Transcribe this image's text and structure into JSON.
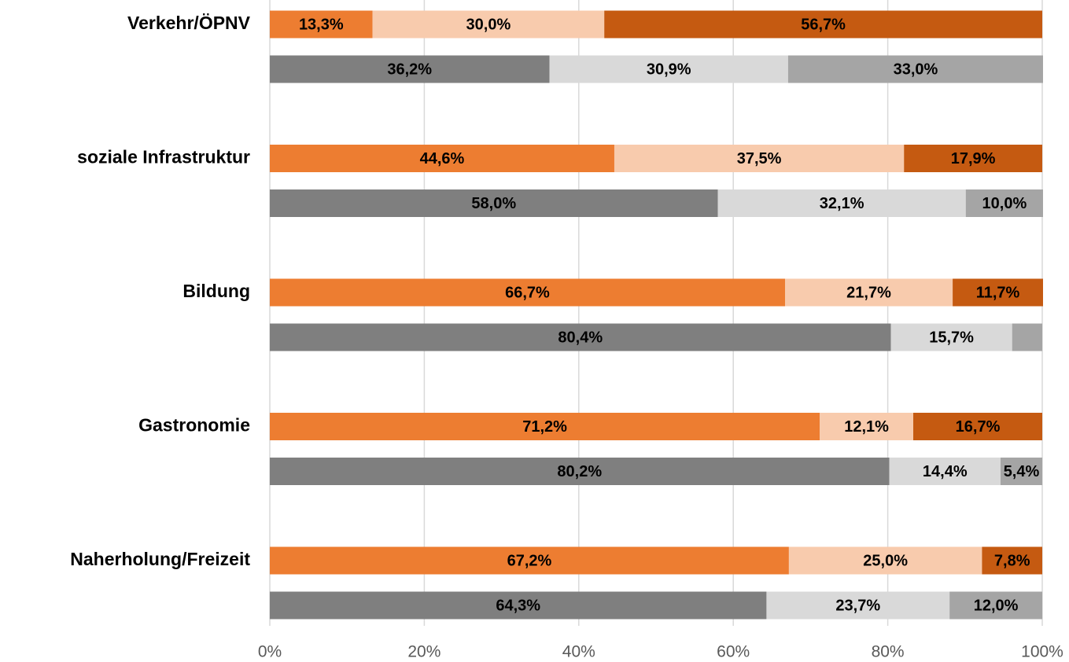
{
  "chart_data": {
    "type": "bar",
    "orientation": "horizontal",
    "stacked": true,
    "categories": [
      "Verkehr/ÖPNV",
      null,
      "soziale Infrastruktur",
      null,
      "Bildung",
      null,
      "Gastronomie",
      null,
      "Naherholung/Freizeit",
      null
    ],
    "series": [
      {
        "color": "#ed7d31",
        "values": [
          13.3,
          null,
          44.6,
          null,
          66.7,
          null,
          71.2,
          null,
          67.2,
          null
        ],
        "value_labels": [
          "13,3%",
          null,
          "44,6%",
          null,
          "66,7%",
          null,
          "71,2%",
          null,
          "67,2%",
          null
        ]
      },
      {
        "color": "#f8cbad",
        "values": [
          30.0,
          null,
          37.5,
          null,
          21.7,
          null,
          12.1,
          null,
          25.0,
          null
        ],
        "value_labels": [
          "30,0%",
          null,
          "37,5%",
          null,
          "21,7%",
          null,
          "12,1%",
          null,
          "25,0%",
          null
        ]
      },
      {
        "color": "#c55a11",
        "values": [
          56.7,
          null,
          17.9,
          null,
          11.7,
          null,
          16.7,
          null,
          7.8,
          null
        ],
        "value_labels": [
          "56,7%",
          null,
          "17,9%",
          null,
          "11,7%",
          null,
          "16,7%",
          null,
          "7,8%",
          null
        ]
      },
      {
        "color": "#7f7f7f",
        "values": [
          null,
          36.2,
          null,
          58.0,
          null,
          80.4,
          null,
          80.2,
          null,
          64.3
        ],
        "value_labels": [
          null,
          "36,2%",
          null,
          "58,0%",
          null,
          "80,4%",
          null,
          "80,2%",
          null,
          "64,3%"
        ]
      },
      {
        "color": "#d9d9d9",
        "values": [
          null,
          30.9,
          null,
          32.1,
          null,
          15.7,
          null,
          14.4,
          null,
          23.7
        ],
        "value_labels": [
          null,
          "30,9%",
          null,
          "32,1%",
          null,
          "15,7%",
          null,
          "14,4%",
          null,
          "23,7%"
        ]
      },
      {
        "color": "#a5a5a5",
        "values": [
          null,
          33.0,
          null,
          10.0,
          null,
          3.9,
          null,
          5.4,
          null,
          12.0
        ],
        "value_labels": [
          null,
          "33,0%",
          null,
          "10,0%",
          null,
          null,
          null,
          "5,4%",
          null,
          "12,0%"
        ]
      }
    ],
    "xlim": [
      0,
      100
    ],
    "xticks": [
      {
        "value": 0,
        "label": "0%"
      },
      {
        "value": 20,
        "label": "20%"
      },
      {
        "value": 40,
        "label": "40%"
      },
      {
        "value": 60,
        "label": "60%"
      },
      {
        "value": 80,
        "label": "80%"
      },
      {
        "value": 100,
        "label": "100%"
      }
    ],
    "grid": true
  }
}
